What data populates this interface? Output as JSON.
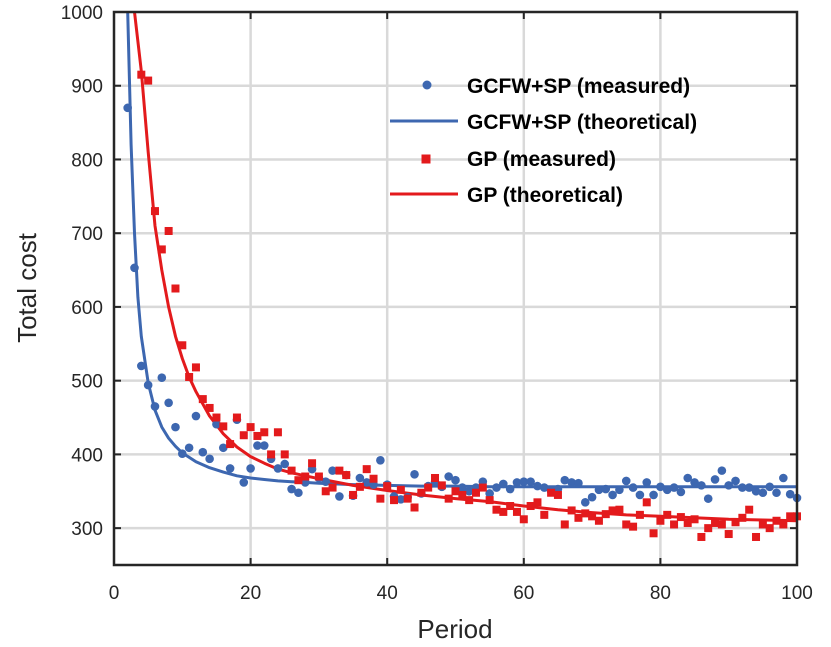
{
  "chart_data": {
    "type": "scatter",
    "title": "",
    "xlabel": "Period",
    "ylabel": "Total cost",
    "xlim": [
      0,
      100
    ],
    "ylim": [
      250,
      1000
    ],
    "xticks": [
      0,
      20,
      40,
      60,
      80,
      100
    ],
    "yticks": [
      300,
      400,
      500,
      600,
      700,
      800,
      900,
      1000
    ],
    "grid": true,
    "legend_position": "top-right",
    "colors": {
      "blue": "#3d67b0",
      "red": "#e31a1c"
    },
    "series": [
      {
        "name": "GCFW+SP (measured)",
        "kind": "markers",
        "marker": "circle",
        "color": "#3d67b0",
        "x": [
          2,
          3,
          4,
          5,
          6,
          7,
          8,
          9,
          10,
          11,
          12,
          13,
          14,
          15,
          16,
          17,
          18,
          19,
          20,
          21,
          22,
          23,
          24,
          25,
          26,
          27,
          28,
          29,
          30,
          31,
          32,
          33,
          34,
          35,
          36,
          37,
          38,
          39,
          40,
          41,
          42,
          43,
          44,
          45,
          46,
          47,
          48,
          49,
          50,
          51,
          52,
          53,
          54,
          55,
          56,
          57,
          58,
          59,
          60,
          61,
          62,
          63,
          64,
          65,
          66,
          67,
          68,
          69,
          70,
          71,
          72,
          73,
          74,
          75,
          76,
          77,
          78,
          79,
          80,
          81,
          82,
          83,
          84,
          85,
          86,
          87,
          88,
          89,
          90,
          91,
          92,
          93,
          94,
          95,
          96,
          97,
          98,
          99,
          100
        ],
        "y": [
          870,
          653,
          520,
          494,
          465,
          504,
          470,
          437,
          401,
          409,
          452,
          403,
          394,
          441,
          409,
          381,
          447,
          362,
          381,
          412,
          412,
          394,
          381,
          387,
          353,
          348,
          362,
          380,
          368,
          363,
          378,
          343,
          372,
          344,
          368,
          362,
          359,
          392,
          359,
          343,
          339,
          342,
          373,
          347,
          357,
          362,
          356,
          370,
          365,
          355,
          350,
          355,
          363,
          347,
          355,
          360,
          353,
          362,
          363,
          363,
          357,
          355,
          350,
          353,
          365,
          362,
          361,
          335,
          342,
          352,
          353,
          345,
          352,
          364,
          355,
          345,
          362,
          345,
          356,
          352,
          355,
          349,
          368,
          362,
          358,
          340,
          366,
          378,
          358,
          364,
          355,
          355,
          350,
          348,
          356,
          348,
          368,
          346,
          341
        ]
      },
      {
        "name": "GCFW+SP (theoretical)",
        "kind": "line",
        "color": "#3d67b0",
        "x": [
          2,
          2.5,
          3,
          3.5,
          4,
          5,
          6,
          7,
          8,
          9,
          10,
          12,
          14,
          16,
          18,
          20,
          22,
          24,
          26,
          28,
          30,
          35,
          40,
          45,
          50,
          55,
          60,
          65,
          70,
          75,
          80,
          85,
          90,
          95,
          100
        ],
        "y": [
          1000,
          820,
          700,
          613,
          560,
          497,
          460,
          437,
          422,
          411,
          402,
          390,
          382,
          376,
          371,
          368,
          366,
          364,
          363,
          362,
          361,
          359,
          358,
          357,
          357,
          356,
          356,
          356,
          356,
          356,
          356,
          356,
          356,
          356,
          356
        ]
      },
      {
        "name": "GP (measured)",
        "kind": "markers",
        "marker": "square",
        "color": "#e31a1c",
        "x": [
          4,
          5,
          6,
          7,
          8,
          9,
          10,
          11,
          12,
          13,
          14,
          15,
          16,
          17,
          18,
          19,
          20,
          21,
          22,
          23,
          24,
          25,
          26,
          27,
          28,
          29,
          30,
          31,
          32,
          33,
          34,
          35,
          36,
          37,
          38,
          39,
          40,
          41,
          42,
          43,
          44,
          45,
          46,
          47,
          48,
          49,
          50,
          51,
          52,
          53,
          54,
          55,
          56,
          57,
          58,
          59,
          60,
          61,
          62,
          63,
          64,
          65,
          66,
          67,
          68,
          69,
          70,
          71,
          72,
          73,
          74,
          75,
          76,
          77,
          78,
          79,
          80,
          81,
          82,
          83,
          84,
          85,
          86,
          87,
          88,
          89,
          90,
          91,
          92,
          93,
          94,
          95,
          96,
          97,
          98,
          99,
          100
        ],
        "y": [
          915,
          907,
          730,
          678,
          703,
          625,
          548,
          505,
          518,
          475,
          463,
          450,
          438,
          414,
          450,
          426,
          437,
          425,
          430,
          400,
          430,
          400,
          378,
          365,
          370,
          388,
          370,
          350,
          355,
          378,
          372,
          345,
          356,
          380,
          367,
          340,
          357,
          338,
          352,
          340,
          328,
          348,
          355,
          368,
          358,
          340,
          350,
          345,
          338,
          348,
          355,
          338,
          325,
          322,
          330,
          322,
          312,
          330,
          335,
          318,
          348,
          345,
          305,
          324,
          314,
          320,
          316,
          310,
          319,
          324,
          325,
          305,
          302,
          318,
          335,
          293,
          310,
          318,
          305,
          315,
          307,
          312,
          288,
          300,
          307,
          305,
          292,
          308,
          314,
          325,
          288,
          305,
          300,
          310,
          305,
          316,
          316
        ]
      },
      {
        "name": "GP (theoretical)",
        "kind": "line",
        "color": "#e31a1c",
        "x": [
          3,
          3.5,
          4,
          5,
          6,
          7,
          8,
          9,
          10,
          11,
          12,
          14,
          16,
          18,
          20,
          22,
          24,
          26,
          28,
          30,
          35,
          40,
          45,
          50,
          55,
          60,
          65,
          70,
          75,
          80,
          85,
          90,
          95,
          100
        ],
        "y": [
          1000,
          960,
          920,
          810,
          710,
          650,
          600,
          560,
          530,
          505,
          485,
          452,
          428,
          410,
          397,
          388,
          380,
          375,
          371,
          367,
          358,
          351,
          345,
          340,
          336,
          330,
          325,
          321,
          318,
          316,
          314,
          312,
          311,
          310
        ]
      }
    ]
  }
}
